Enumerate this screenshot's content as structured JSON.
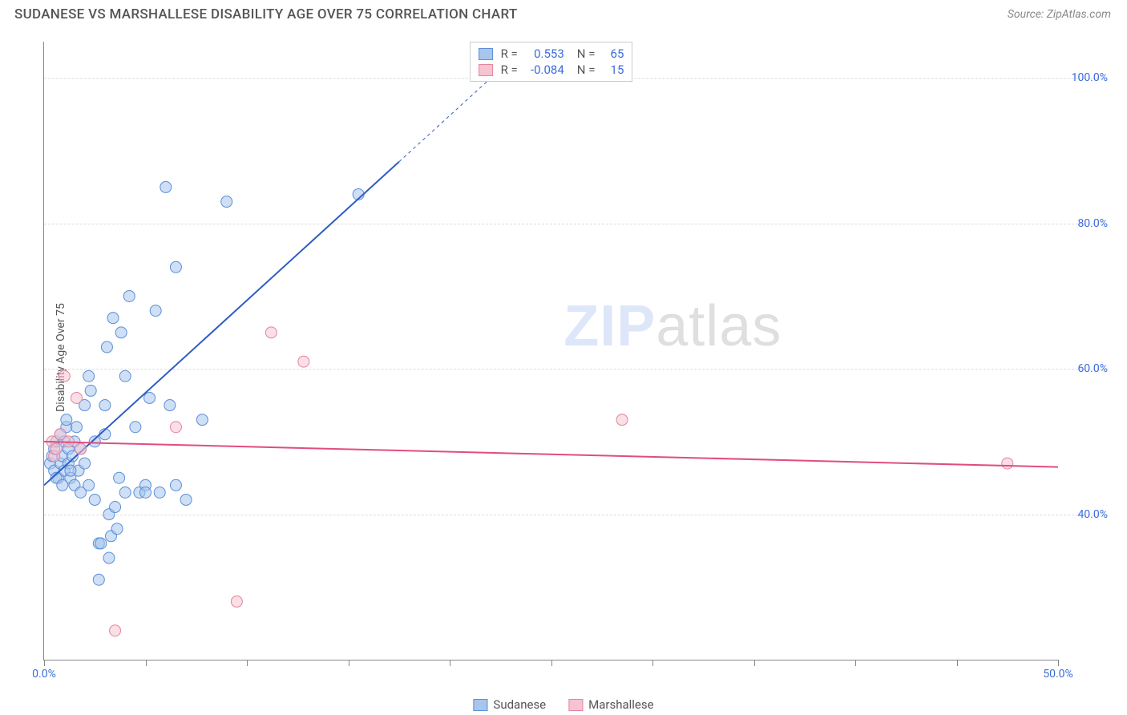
{
  "header": {
    "title": "SUDANESE VS MARSHALLESE DISABILITY AGE OVER 75 CORRELATION CHART",
    "source": "Source: ZipAtlas.com"
  },
  "chart": {
    "type": "scatter",
    "ylabel": "Disability Age Over 75",
    "watermark_a": "ZIP",
    "watermark_b": "atlas",
    "background_color": "#ffffff",
    "grid_color": "#dddddd",
    "axis_color": "#888888",
    "label_color": "#3b6cde",
    "xlim": [
      0,
      50
    ],
    "ylim": [
      20,
      105
    ],
    "xtick_positions": [
      0,
      5,
      10,
      15,
      20,
      25,
      30,
      35,
      40,
      45,
      50
    ],
    "xtick_labels": {
      "0": "0.0%",
      "50": "50.0%"
    },
    "ytick_positions": [
      40,
      60,
      80,
      100
    ],
    "ytick_labels": {
      "40": "40.0%",
      "60": "60.0%",
      "80": "80.0%",
      "100": "100.0%"
    },
    "marker_radius": 7,
    "marker_opacity": 0.55,
    "line_width": 2,
    "series": [
      {
        "name": "Sudanese",
        "color_fill": "#a8c5ec",
        "color_stroke": "#5a8fd8",
        "line_color": "#2e5cc4",
        "r_value": "0.553",
        "n_value": "65",
        "trend": {
          "x1": 0,
          "y1": 44,
          "x2": 24,
          "y2": 105
        },
        "trend_dash_from_x": 17.5,
        "points": [
          [
            0.3,
            47
          ],
          [
            0.4,
            48
          ],
          [
            0.5,
            46
          ],
          [
            0.5,
            49
          ],
          [
            0.6,
            50
          ],
          [
            0.7,
            45
          ],
          [
            0.8,
            47
          ],
          [
            0.8,
            51
          ],
          [
            0.9,
            48
          ],
          [
            1.0,
            46
          ],
          [
            1.0,
            50
          ],
          [
            1.1,
            52
          ],
          [
            1.2,
            47
          ],
          [
            1.2,
            49
          ],
          [
            1.3,
            45
          ],
          [
            1.4,
            48
          ],
          [
            1.5,
            50
          ],
          [
            1.5,
            44
          ],
          [
            1.6,
            52
          ],
          [
            1.7,
            46
          ],
          [
            1.8,
            43
          ],
          [
            1.8,
            49
          ],
          [
            2.0,
            47
          ],
          [
            2.0,
            55
          ],
          [
            2.2,
            44
          ],
          [
            2.2,
            59
          ],
          [
            2.3,
            57
          ],
          [
            2.5,
            42
          ],
          [
            2.5,
            50
          ],
          [
            2.7,
            36
          ],
          [
            2.8,
            36
          ],
          [
            3.0,
            51
          ],
          [
            3.0,
            55
          ],
          [
            3.1,
            63
          ],
          [
            3.2,
            40
          ],
          [
            3.3,
            37
          ],
          [
            3.4,
            67
          ],
          [
            3.5,
            41
          ],
          [
            3.7,
            45
          ],
          [
            3.8,
            65
          ],
          [
            4.0,
            59
          ],
          [
            4.0,
            43
          ],
          [
            4.2,
            70
          ],
          [
            4.5,
            52
          ],
          [
            4.7,
            43
          ],
          [
            5.0,
            44
          ],
          [
            5.2,
            56
          ],
          [
            5.5,
            68
          ],
          [
            5.7,
            43
          ],
          [
            6.0,
            85
          ],
          [
            6.2,
            55
          ],
          [
            6.5,
            74
          ],
          [
            7.0,
            42
          ],
          [
            7.8,
            53
          ],
          [
            2.7,
            31
          ],
          [
            3.2,
            34
          ],
          [
            3.6,
            38
          ],
          [
            5.0,
            43
          ],
          [
            6.5,
            44
          ],
          [
            9.0,
            83
          ],
          [
            15.5,
            84
          ],
          [
            0.6,
            45
          ],
          [
            0.9,
            44
          ],
          [
            1.1,
            53
          ],
          [
            1.3,
            46
          ]
        ]
      },
      {
        "name": "Marshallese",
        "color_fill": "#f6c4d0",
        "color_stroke": "#e483a0",
        "line_color": "#e04d7e",
        "r_value": "-0.084",
        "n_value": "15",
        "trend": {
          "x1": 0,
          "y1": 50,
          "x2": 50,
          "y2": 46.5
        },
        "points": [
          [
            0.4,
            50
          ],
          [
            0.5,
            48
          ],
          [
            0.6,
            49
          ],
          [
            0.8,
            51
          ],
          [
            1.0,
            59
          ],
          [
            1.2,
            50
          ],
          [
            1.6,
            56
          ],
          [
            1.8,
            49
          ],
          [
            6.5,
            52
          ],
          [
            9.5,
            28
          ],
          [
            11.2,
            65
          ],
          [
            12.8,
            61
          ],
          [
            28.5,
            53
          ],
          [
            47.5,
            47
          ],
          [
            3.5,
            24
          ]
        ]
      }
    ]
  },
  "legend_bottom": [
    {
      "label": "Sudanese",
      "fill": "#a8c5ec",
      "stroke": "#5a8fd8"
    },
    {
      "label": "Marshallese",
      "fill": "#f6c4d0",
      "stroke": "#e483a0"
    }
  ]
}
